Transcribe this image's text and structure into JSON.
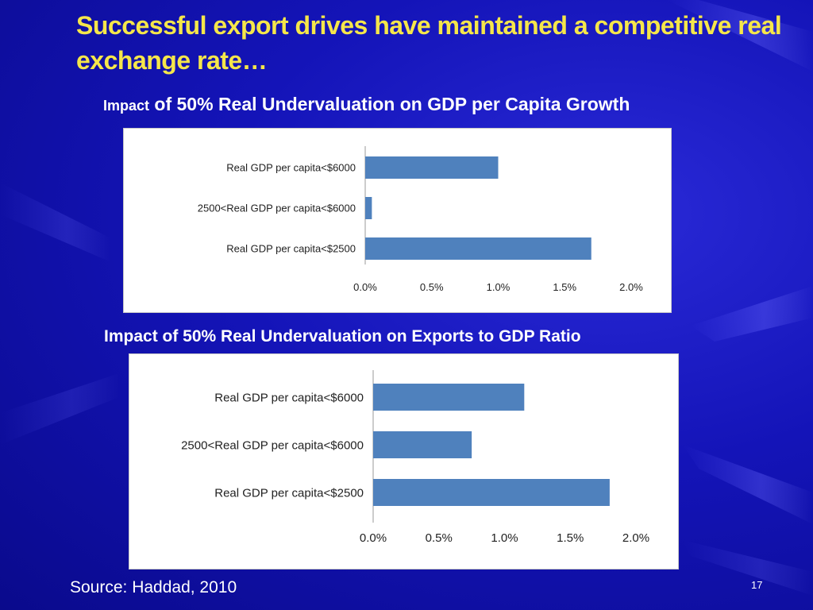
{
  "slide": {
    "title": "Successful export drives have maintained a competitive real exchange rate…",
    "source": "Source: Haddad, 2010",
    "page_number": "17",
    "title_color": "#f5e64a",
    "background_color": "#1414b8"
  },
  "chart_data": [
    {
      "type": "bar",
      "orientation": "horizontal",
      "title_prefix": "Impact",
      "title_rest": "of 50% Real Undervaluation on GDP per Capita Growth",
      "categories": [
        "Real GDP per capita<$6000",
        "2500<Real GDP per capita<$6000",
        "Real GDP per capita<$2500"
      ],
      "values": [
        1.0,
        0.05,
        1.7
      ],
      "xlim": [
        0,
        2.0
      ],
      "xticks": [
        "0.0%",
        "0.5%",
        "1.0%",
        "1.5%",
        "2.0%"
      ],
      "tick_values": [
        0,
        0.5,
        1.0,
        1.5,
        2.0
      ],
      "bar_color": "#4f81bd",
      "grid": false
    },
    {
      "type": "bar",
      "orientation": "horizontal",
      "title": "Impact of 50% Real Undervaluation on Exports to GDP Ratio",
      "categories": [
        "Real GDP per capita<$6000",
        "2500<Real GDP per capita<$6000",
        "Real GDP per capita<$2500"
      ],
      "values": [
        1.15,
        0.75,
        1.8
      ],
      "xlim": [
        0,
        2.0
      ],
      "xticks": [
        "0.0%",
        "0.5%",
        "1.0%",
        "1.5%",
        "2.0%"
      ],
      "tick_values": [
        0,
        0.5,
        1.0,
        1.5,
        2.0
      ],
      "bar_color": "#4f81bd",
      "grid": false
    }
  ]
}
